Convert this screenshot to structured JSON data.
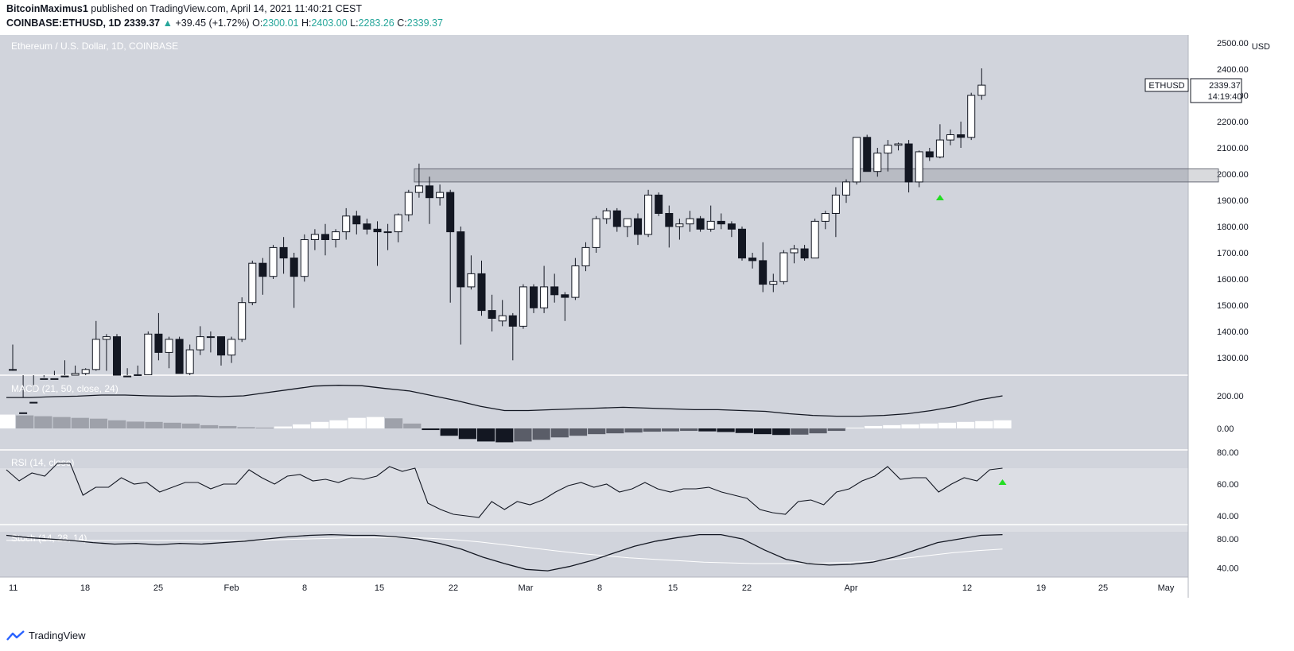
{
  "header": {
    "author": "BitcoinMaximus1",
    "published_text": "published on TradingView.com, April 14, 2021 11:40:21 CEST",
    "symbol": "COINBASE:ETHUSD, 1D",
    "last": "2339.37",
    "change_arrow": "▲",
    "change": "+39.45 (+1.72%)",
    "o_label": "O:",
    "o_val": "2300.01",
    "h_label": "H:",
    "h_val": "2403.00",
    "l_label": "L:",
    "l_val": "2283.26",
    "c_label": "C:",
    "c_val": "2339.37"
  },
  "footer": {
    "brand": "TradingView",
    "brand_icon": "tradingview-logo-icon"
  },
  "colors": {
    "background": "#d1d4dc",
    "rsi_band": "#dcdee4",
    "bull_body": "#ffffff",
    "bear_body": "#131722",
    "line": "#131722",
    "signal": "#ffffff",
    "green_marker": "#22dd22",
    "accent": "#26a69a"
  },
  "chart_data": {
    "type": "candlestick",
    "title": "Ethereum / U.S. Dollar, 1D, COINBASE",
    "currency_label": "USD",
    "last_price_label": {
      "symbol": "ETHUSD",
      "price": "2339.37",
      "countdown": "14:19:40"
    },
    "y_ticks": [
      "1300.00",
      "1400.00",
      "1500.00",
      "1600.00",
      "1700.00",
      "1800.00",
      "1900.00",
      "2000.00",
      "2100.00",
      "2200.00",
      "2300.00",
      "2400.00",
      "2500.00"
    ],
    "x_ticks": [
      "11",
      "18",
      "25",
      "Feb",
      "8",
      "15",
      "22",
      "Mar",
      "8",
      "15",
      "22",
      "Apr",
      "12",
      "19",
      "25",
      "May"
    ],
    "resistance_zone": [
      1970,
      2020
    ],
    "markers": [
      "2021-04-09 buy signal (green triangle)",
      "RSI 2021-04-14 (green triangle)"
    ],
    "candles": [
      {
        "date": "2021-01-11",
        "o": 1255,
        "h": 1350,
        "l": 1250,
        "c": 1255
      },
      {
        "date": "2021-01-12",
        "o": 1090,
        "h": 1150,
        "l": 1040,
        "c": 1040
      },
      {
        "date": "2021-01-13",
        "o": 1040,
        "h": 1170,
        "l": 1040,
        "c": 1130
      },
      {
        "date": "2021-01-14",
        "o": 1140,
        "h": 1225,
        "l": 1130,
        "c": 1220
      },
      {
        "date": "2021-01-15",
        "o": 1220,
        "h": 1250,
        "l": 1070,
        "c": 1170
      },
      {
        "date": "2021-01-16",
        "o": 1170,
        "h": 1290,
        "l": 1160,
        "c": 1230
      },
      {
        "date": "2021-01-17",
        "o": 1230,
        "h": 1270,
        "l": 1180,
        "c": 1240
      },
      {
        "date": "2021-01-18",
        "o": 1240,
        "h": 1260,
        "l": 1200,
        "c": 1255
      },
      {
        "date": "2021-01-19",
        "o": 1255,
        "h": 1440,
        "l": 1250,
        "c": 1370
      },
      {
        "date": "2021-01-20",
        "o": 1370,
        "h": 1390,
        "l": 1250,
        "c": 1380
      },
      {
        "date": "2021-01-21",
        "o": 1380,
        "h": 1390,
        "l": 1100,
        "c": 1120
      },
      {
        "date": "2021-01-22",
        "o": 1120,
        "h": 1260,
        "l": 1100,
        "c": 1230
      },
      {
        "date": "2021-01-23",
        "o": 1230,
        "h": 1270,
        "l": 1200,
        "c": 1235
      },
      {
        "date": "2021-01-24",
        "o": 1235,
        "h": 1400,
        "l": 1220,
        "c": 1390
      },
      {
        "date": "2021-01-25",
        "o": 1390,
        "h": 1470,
        "l": 1290,
        "c": 1320
      },
      {
        "date": "2021-01-26",
        "o": 1320,
        "h": 1380,
        "l": 1260,
        "c": 1370
      },
      {
        "date": "2021-01-27",
        "o": 1370,
        "h": 1380,
        "l": 1240,
        "c": 1240
      },
      {
        "date": "2021-01-28",
        "o": 1240,
        "h": 1350,
        "l": 1230,
        "c": 1330
      },
      {
        "date": "2021-01-29",
        "o": 1330,
        "h": 1420,
        "l": 1310,
        "c": 1380
      },
      {
        "date": "2021-01-30",
        "o": 1380,
        "h": 1400,
        "l": 1320,
        "c": 1380
      },
      {
        "date": "2021-01-31",
        "o": 1380,
        "h": 1380,
        "l": 1270,
        "c": 1310
      },
      {
        "date": "2021-02-01",
        "o": 1310,
        "h": 1380,
        "l": 1280,
        "c": 1370
      },
      {
        "date": "2021-02-02",
        "o": 1370,
        "h": 1530,
        "l": 1360,
        "c": 1510
      },
      {
        "date": "2021-02-03",
        "o": 1510,
        "h": 1670,
        "l": 1500,
        "c": 1660
      },
      {
        "date": "2021-02-04",
        "o": 1660,
        "h": 1680,
        "l": 1540,
        "c": 1610
      },
      {
        "date": "2021-02-05",
        "o": 1610,
        "h": 1730,
        "l": 1600,
        "c": 1720
      },
      {
        "date": "2021-02-06",
        "o": 1720,
        "h": 1760,
        "l": 1620,
        "c": 1680
      },
      {
        "date": "2021-02-07",
        "o": 1680,
        "h": 1700,
        "l": 1490,
        "c": 1610
      },
      {
        "date": "2021-02-08",
        "o": 1610,
        "h": 1770,
        "l": 1590,
        "c": 1750
      },
      {
        "date": "2021-02-09",
        "o": 1750,
        "h": 1790,
        "l": 1710,
        "c": 1770
      },
      {
        "date": "2021-02-10",
        "o": 1770,
        "h": 1810,
        "l": 1690,
        "c": 1750
      },
      {
        "date": "2021-02-11",
        "o": 1750,
        "h": 1790,
        "l": 1720,
        "c": 1780
      },
      {
        "date": "2021-02-12",
        "o": 1780,
        "h": 1870,
        "l": 1750,
        "c": 1840
      },
      {
        "date": "2021-02-13",
        "o": 1840,
        "h": 1860,
        "l": 1770,
        "c": 1810
      },
      {
        "date": "2021-02-14",
        "o": 1810,
        "h": 1830,
        "l": 1770,
        "c": 1790
      },
      {
        "date": "2021-02-15",
        "o": 1790,
        "h": 1820,
        "l": 1650,
        "c": 1780
      },
      {
        "date": "2021-02-16",
        "o": 1780,
        "h": 1810,
        "l": 1710,
        "c": 1780
      },
      {
        "date": "2021-02-17",
        "o": 1780,
        "h": 1850,
        "l": 1740,
        "c": 1845
      },
      {
        "date": "2021-02-18",
        "o": 1845,
        "h": 1940,
        "l": 1820,
        "c": 1930
      },
      {
        "date": "2021-02-19",
        "o": 1930,
        "h": 2040,
        "l": 1910,
        "c": 1955
      },
      {
        "date": "2021-02-20",
        "o": 1955,
        "h": 1990,
        "l": 1810,
        "c": 1910
      },
      {
        "date": "2021-02-21",
        "o": 1910,
        "h": 1960,
        "l": 1880,
        "c": 1930
      },
      {
        "date": "2021-02-22",
        "o": 1930,
        "h": 1940,
        "l": 1510,
        "c": 1780
      },
      {
        "date": "2021-02-23",
        "o": 1780,
        "h": 1800,
        "l": 1350,
        "c": 1570
      },
      {
        "date": "2021-02-24",
        "o": 1570,
        "h": 1690,
        "l": 1560,
        "c": 1620
      },
      {
        "date": "2021-02-25",
        "o": 1620,
        "h": 1670,
        "l": 1460,
        "c": 1480
      },
      {
        "date": "2021-02-26",
        "o": 1480,
        "h": 1540,
        "l": 1400,
        "c": 1450
      },
      {
        "date": "2021-02-27",
        "o": 1440,
        "h": 1520,
        "l": 1420,
        "c": 1460
      },
      {
        "date": "2021-02-28",
        "o": 1460,
        "h": 1470,
        "l": 1290,
        "c": 1420
      },
      {
        "date": "2021-03-01",
        "o": 1420,
        "h": 1580,
        "l": 1410,
        "c": 1570
      },
      {
        "date": "2021-03-02",
        "o": 1570,
        "h": 1580,
        "l": 1470,
        "c": 1490
      },
      {
        "date": "2021-03-03",
        "o": 1490,
        "h": 1650,
        "l": 1470,
        "c": 1570
      },
      {
        "date": "2021-03-04",
        "o": 1570,
        "h": 1620,
        "l": 1510,
        "c": 1540
      },
      {
        "date": "2021-03-05",
        "o": 1540,
        "h": 1550,
        "l": 1440,
        "c": 1530
      },
      {
        "date": "2021-03-06",
        "o": 1530,
        "h": 1680,
        "l": 1520,
        "c": 1650
      },
      {
        "date": "2021-03-07",
        "o": 1650,
        "h": 1740,
        "l": 1630,
        "c": 1720
      },
      {
        "date": "2021-03-08",
        "o": 1720,
        "h": 1840,
        "l": 1700,
        "c": 1830
      },
      {
        "date": "2021-03-09",
        "o": 1830,
        "h": 1870,
        "l": 1810,
        "c": 1860
      },
      {
        "date": "2021-03-10",
        "o": 1860,
        "h": 1870,
        "l": 1780,
        "c": 1800
      },
      {
        "date": "2021-03-11",
        "o": 1800,
        "h": 1830,
        "l": 1760,
        "c": 1830
      },
      {
        "date": "2021-03-12",
        "o": 1830,
        "h": 1850,
        "l": 1730,
        "c": 1770
      },
      {
        "date": "2021-03-13",
        "o": 1770,
        "h": 1940,
        "l": 1760,
        "c": 1920
      },
      {
        "date": "2021-03-14",
        "o": 1920,
        "h": 1930,
        "l": 1840,
        "c": 1850
      },
      {
        "date": "2021-03-15",
        "o": 1850,
        "h": 1880,
        "l": 1720,
        "c": 1800
      },
      {
        "date": "2021-03-16",
        "o": 1800,
        "h": 1830,
        "l": 1750,
        "c": 1810
      },
      {
        "date": "2021-03-17",
        "o": 1810,
        "h": 1860,
        "l": 1780,
        "c": 1830
      },
      {
        "date": "2021-03-18",
        "o": 1830,
        "h": 1840,
        "l": 1780,
        "c": 1790
      },
      {
        "date": "2021-03-19",
        "o": 1790,
        "h": 1880,
        "l": 1780,
        "c": 1820
      },
      {
        "date": "2021-03-20",
        "o": 1820,
        "h": 1850,
        "l": 1790,
        "c": 1810
      },
      {
        "date": "2021-03-21",
        "o": 1810,
        "h": 1820,
        "l": 1760,
        "c": 1790
      },
      {
        "date": "2021-03-22",
        "o": 1790,
        "h": 1800,
        "l": 1670,
        "c": 1680
      },
      {
        "date": "2021-03-23",
        "o": 1680,
        "h": 1700,
        "l": 1640,
        "c": 1670
      },
      {
        "date": "2021-03-24",
        "o": 1670,
        "h": 1740,
        "l": 1550,
        "c": 1580
      },
      {
        "date": "2021-03-25",
        "o": 1580,
        "h": 1620,
        "l": 1550,
        "c": 1590
      },
      {
        "date": "2021-03-26",
        "o": 1590,
        "h": 1710,
        "l": 1580,
        "c": 1700
      },
      {
        "date": "2021-03-27",
        "o": 1700,
        "h": 1730,
        "l": 1660,
        "c": 1715
      },
      {
        "date": "2021-03-28",
        "o": 1715,
        "h": 1730,
        "l": 1670,
        "c": 1680
      },
      {
        "date": "2021-03-29",
        "o": 1680,
        "h": 1830,
        "l": 1680,
        "c": 1820
      },
      {
        "date": "2021-03-30",
        "o": 1820,
        "h": 1860,
        "l": 1790,
        "c": 1850
      },
      {
        "date": "2021-03-31",
        "o": 1850,
        "h": 1950,
        "l": 1760,
        "c": 1920
      },
      {
        "date": "2021-04-01",
        "o": 1920,
        "h": 1980,
        "l": 1890,
        "c": 1970
      },
      {
        "date": "2021-04-02",
        "o": 1970,
        "h": 2140,
        "l": 1960,
        "c": 2140
      },
      {
        "date": "2021-04-03",
        "o": 2140,
        "h": 2150,
        "l": 2010,
        "c": 2010
      },
      {
        "date": "2021-04-04",
        "o": 2010,
        "h": 2100,
        "l": 1990,
        "c": 2080
      },
      {
        "date": "2021-04-05",
        "o": 2080,
        "h": 2130,
        "l": 2010,
        "c": 2110
      },
      {
        "date": "2021-04-06",
        "o": 2110,
        "h": 2120,
        "l": 2090,
        "c": 2115
      },
      {
        "date": "2021-04-07",
        "o": 2115,
        "h": 2130,
        "l": 1930,
        "c": 1970
      },
      {
        "date": "2021-04-08",
        "o": 1970,
        "h": 2090,
        "l": 1950,
        "c": 2085
      },
      {
        "date": "2021-04-09",
        "o": 2085,
        "h": 2100,
        "l": 2050,
        "c": 2065
      },
      {
        "date": "2021-04-10",
        "o": 2065,
        "h": 2190,
        "l": 2060,
        "c": 2130
      },
      {
        "date": "2021-04-11",
        "o": 2130,
        "h": 2170,
        "l": 2110,
        "c": 2150
      },
      {
        "date": "2021-04-12",
        "o": 2150,
        "h": 2200,
        "l": 2100,
        "c": 2140
      },
      {
        "date": "2021-04-13",
        "o": 2140,
        "h": 2310,
        "l": 2130,
        "c": 2300
      },
      {
        "date": "2021-04-14",
        "o": 2300,
        "h": 2403,
        "l": 2283,
        "c": 2339
      }
    ],
    "macd": {
      "label": "MACD (21, 50, close, 24)",
      "y_ticks": [
        "200.00",
        "0.00"
      ],
      "macd_line": [
        190,
        190,
        195,
        198,
        205,
        205,
        200,
        198,
        200,
        195,
        200,
        220,
        240,
        260,
        265,
        262,
        245,
        230,
        200,
        170,
        135,
        110,
        110,
        115,
        120,
        125,
        130,
        125,
        120,
        115,
        115,
        110,
        105,
        90,
        80,
        75,
        75,
        80,
        90,
        110,
        135,
        175,
        200
      ],
      "histogram": [
        85,
        80,
        75,
        70,
        65,
        60,
        50,
        42,
        40,
        35,
        30,
        20,
        15,
        8,
        5,
        12,
        25,
        40,
        50,
        65,
        70,
        62,
        30,
        -10,
        -45,
        -65,
        -80,
        -85,
        -80,
        -70,
        -55,
        -45,
        -35,
        -30,
        -25,
        -20,
        -18,
        -15,
        -18,
        -22,
        -28,
        -35,
        -40,
        -38,
        -30,
        -15,
        5,
        15,
        20,
        25,
        30,
        35,
        40,
        45,
        50
      ]
    },
    "rsi": {
      "label": "RSI (14, close)",
      "y_ticks": [
        "80.00",
        "60.00",
        "40.00"
      ],
      "band": [
        30,
        70
      ],
      "values": [
        69,
        62,
        67,
        65,
        73,
        73,
        53,
        58,
        58,
        64,
        60,
        61,
        55,
        58,
        61,
        61,
        57,
        60,
        60,
        69,
        64,
        60,
        65,
        66,
        62,
        63,
        61,
        64,
        63,
        65,
        71,
        68,
        70,
        48,
        44,
        41,
        40,
        39,
        49,
        44,
        49,
        47,
        50,
        55,
        59,
        61,
        58,
        60,
        55,
        57,
        61,
        57,
        55,
        57,
        57,
        58,
        55,
        53,
        51,
        44,
        42,
        41,
        49,
        50,
        47,
        55,
        57,
        62,
        65,
        71,
        63,
        64,
        64,
        55,
        60,
        64,
        62,
        69,
        70
      ]
    },
    "stoch": {
      "label": "Stoch (14, 28, 14)",
      "y_ticks": [
        "80.00",
        "40.00"
      ],
      "k": [
        85,
        82,
        80,
        78,
        75,
        73,
        74,
        72,
        74,
        73,
        75,
        77,
        80,
        83,
        85,
        86,
        85,
        85,
        83,
        80,
        74,
        66,
        55,
        46,
        38,
        36,
        42,
        50,
        60,
        70,
        77,
        82,
        86,
        86,
        80,
        65,
        52,
        46,
        44,
        45,
        48,
        55,
        65,
        75,
        80,
        85,
        86
      ],
      "d": [
        78,
        78,
        78,
        78,
        78,
        78,
        78,
        78,
        78,
        78,
        78,
        79,
        80,
        81,
        82,
        82,
        82,
        81,
        79,
        76,
        72,
        68,
        64,
        60,
        57,
        54,
        52,
        50,
        48,
        47,
        46,
        46,
        46,
        47,
        48,
        50,
        53,
        57,
        61,
        64,
        66
      ]
    }
  }
}
